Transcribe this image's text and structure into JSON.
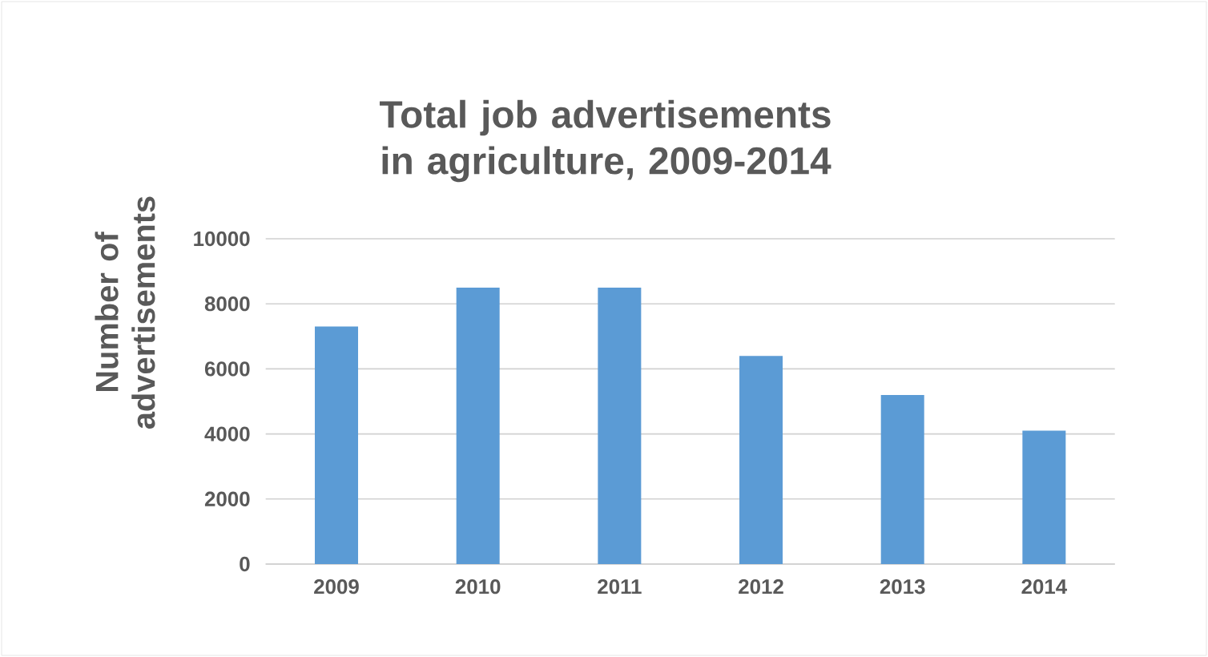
{
  "chart_data": {
    "type": "bar",
    "title": "Total job advertisements in agriculture, 2009-2014",
    "ylabel": "Number of advertisements",
    "categories": [
      "2009",
      "2010",
      "2011",
      "2012",
      "2013",
      "2014"
    ],
    "values": [
      7300,
      8500,
      8500,
      6400,
      5200,
      4100
    ],
    "color": "#5b9bd5",
    "ylim": [
      0,
      10000
    ],
    "yticks": [
      0,
      2000,
      4000,
      6000,
      8000,
      10000
    ],
    "grid": "y"
  }
}
